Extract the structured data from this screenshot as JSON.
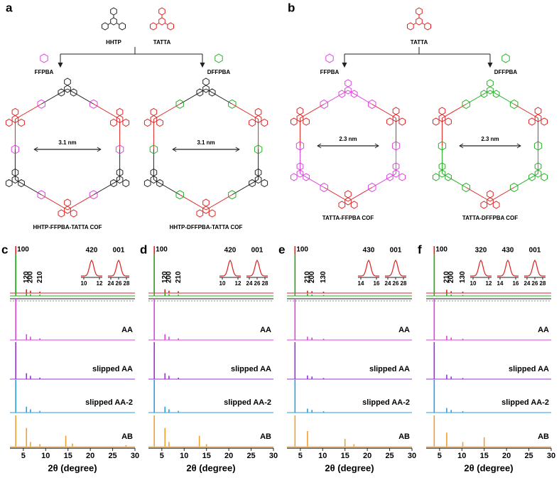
{
  "panel_a": {
    "label": "a",
    "monomers": [
      "HHTP",
      "TATTA"
    ],
    "linkers": [
      "FFPBA",
      "DFFPBA"
    ],
    "pore_sizes": [
      "3.1 nm",
      "3.1 nm"
    ],
    "products": [
      "HHTP-FFPBA-TATTA COF",
      "HHTP-DFFPBA-TATTA COF"
    ]
  },
  "panel_b": {
    "label": "b",
    "monomers": [
      "TATTA"
    ],
    "linkers": [
      "FFPBA",
      "DFFPBA"
    ],
    "pore_sizes": [
      "2.3 nm",
      "2.3 nm"
    ],
    "products": [
      "TATTA-FFPBA COF",
      "TATTA-DFFPBA COF"
    ]
  },
  "chart_data": [
    {
      "type": "stick",
      "label": "c",
      "x_label": "2θ (degree)",
      "xlim": [
        2,
        30
      ],
      "xticks": [
        5,
        10,
        15,
        20,
        25,
        30
      ],
      "peak_labels": [
        "100",
        "120",
        "200",
        "210"
      ],
      "insets": [
        {
          "label": "420",
          "ticks": [
            10,
            12
          ]
        },
        {
          "label": "001",
          "ticks": [
            24,
            26,
            28
          ]
        }
      ],
      "series": [
        {
          "color": "#e02020",
          "x": [
            3.3,
            5.7,
            6.6,
            8.7
          ],
          "values": [
            100,
            8,
            5,
            3
          ]
        },
        {
          "color": "#22b022",
          "x": [
            3.3,
            5.7,
            6.6,
            8.7
          ],
          "values": [
            95,
            7,
            4,
            3
          ]
        },
        {
          "name": "AA",
          "color": "#e040e0",
          "x": [
            3.3,
            5.7,
            6.6,
            8.7
          ],
          "values": [
            100,
            14,
            8,
            4
          ]
        },
        {
          "name": "slipped AA",
          "color": "#9a30d0",
          "x": [
            3.3,
            5.7,
            6.6,
            8.7
          ],
          "values": [
            100,
            16,
            9,
            4
          ]
        },
        {
          "name": "slipped AA-2",
          "color": "#2a9ee0",
          "x": [
            3.3,
            5.7,
            6.6,
            8.7
          ],
          "values": [
            100,
            18,
            10,
            5
          ]
        },
        {
          "name": "AB",
          "color": "#f0a030",
          "x": [
            3.3,
            5.7,
            6.6,
            8.7,
            14.5,
            16,
            28
          ],
          "values": [
            100,
            60,
            15,
            8,
            35,
            10,
            5
          ]
        }
      ]
    },
    {
      "type": "stick",
      "label": "d",
      "x_label": "2θ (degree)",
      "xlim": [
        2,
        30
      ],
      "xticks": [
        5,
        10,
        15,
        20,
        25,
        30
      ],
      "peak_labels": [
        "100",
        "120",
        "200",
        "210"
      ],
      "insets": [
        {
          "label": "420",
          "ticks": [
            10,
            12
          ]
        },
        {
          "label": "001",
          "ticks": [
            24,
            26,
            28
          ]
        }
      ],
      "series": [
        {
          "color": "#e02020",
          "x": [
            3.3,
            5.7,
            6.6,
            8.7
          ],
          "values": [
            100,
            8,
            5,
            4
          ]
        },
        {
          "color": "#22b022",
          "x": [
            3.3,
            5.7,
            6.6,
            8.7
          ],
          "values": [
            95,
            7,
            4,
            3
          ]
        },
        {
          "name": "AA",
          "color": "#e040e0",
          "x": [
            3.3,
            5.7,
            6.6,
            8.7
          ],
          "values": [
            100,
            14,
            8,
            4
          ]
        },
        {
          "name": "slipped AA",
          "color": "#9a30d0",
          "x": [
            3.3,
            5.7,
            6.6,
            8.7
          ],
          "values": [
            100,
            16,
            9,
            4
          ]
        },
        {
          "name": "slipped AA-2",
          "color": "#2a9ee0",
          "x": [
            3.3,
            5.7,
            6.6,
            8.7
          ],
          "values": [
            100,
            18,
            10,
            5
          ]
        },
        {
          "name": "AB",
          "color": "#f0a030",
          "x": [
            3.3,
            5.7,
            6.6,
            13.4,
            15
          ],
          "values": [
            100,
            60,
            15,
            35,
            8
          ]
        }
      ]
    },
    {
      "type": "stick",
      "label": "e",
      "x_label": "2θ (degree)",
      "xlim": [
        2,
        30
      ],
      "xticks": [
        5,
        10,
        15,
        20,
        25,
        30
      ],
      "peak_labels": [
        "100",
        "210",
        "200",
        "130"
      ],
      "insets": [
        {
          "label": "430",
          "ticks": [
            14,
            16
          ]
        },
        {
          "label": "001",
          "ticks": [
            24,
            26,
            28
          ]
        }
      ],
      "series": [
        {
          "color": "#e02020",
          "x": [
            3.8,
            6.6,
            7.6,
            10.2
          ],
          "values": [
            100,
            5,
            4,
            3
          ]
        },
        {
          "color": "#22b022",
          "x": [
            3.8,
            6.6,
            7.6,
            10.2
          ],
          "values": [
            95,
            5,
            3,
            2
          ]
        },
        {
          "name": "AA",
          "color": "#e040e0",
          "x": [
            3.8,
            6.6,
            7.6,
            10.2
          ],
          "values": [
            100,
            8,
            6,
            3
          ]
        },
        {
          "name": "slipped AA",
          "color": "#9a30d0",
          "x": [
            3.8,
            6.6,
            7.6,
            10.2
          ],
          "values": [
            100,
            10,
            7,
            3
          ]
        },
        {
          "name": "slipped AA-2",
          "color": "#2a9ee0",
          "x": [
            3.8,
            6.6,
            7.6,
            10.2
          ],
          "values": [
            100,
            12,
            8,
            4
          ]
        },
        {
          "name": "AB",
          "color": "#f0a030",
          "x": [
            3.8,
            6.6,
            15,
            17
          ],
          "values": [
            100,
            50,
            25,
            8
          ]
        }
      ]
    },
    {
      "type": "stick",
      "label": "f",
      "x_label": "2θ (degree)",
      "xlim": [
        2,
        30
      ],
      "xticks": [
        5,
        10,
        15,
        20,
        25,
        30
      ],
      "peak_labels": [
        "100",
        "210",
        "200",
        "130"
      ],
      "insets": [
        {
          "label": "320",
          "ticks": [
            10,
            12
          ]
        },
        {
          "label": "430",
          "ticks": [
            14,
            16
          ]
        },
        {
          "label": "001",
          "ticks": [
            24,
            26,
            28
          ]
        }
      ],
      "series": [
        {
          "color": "#e02020",
          "x": [
            3.8,
            6.6,
            7.6,
            10.2
          ],
          "values": [
            100,
            7,
            4,
            3
          ]
        },
        {
          "color": "#22b022",
          "x": [
            3.8,
            6.6,
            7.6,
            10.2
          ],
          "values": [
            95,
            6,
            3,
            2
          ]
        },
        {
          "name": "AA",
          "color": "#e040e0",
          "x": [
            3.8,
            6.6,
            7.6,
            10.2
          ],
          "values": [
            100,
            10,
            6,
            3
          ]
        },
        {
          "name": "slipped AA",
          "color": "#9a30d0",
          "x": [
            3.8,
            6.6,
            7.6,
            10.2
          ],
          "values": [
            100,
            12,
            7,
            3
          ]
        },
        {
          "name": "slipped AA-2",
          "color": "#2a9ee0",
          "x": [
            3.8,
            6.6,
            7.6,
            10.2
          ],
          "values": [
            100,
            14,
            8,
            4
          ]
        },
        {
          "name": "AB",
          "color": "#f0a030",
          "x": [
            3.8,
            6.6,
            10.2,
            15
          ],
          "values": [
            100,
            45,
            15,
            30
          ]
        }
      ]
    }
  ]
}
